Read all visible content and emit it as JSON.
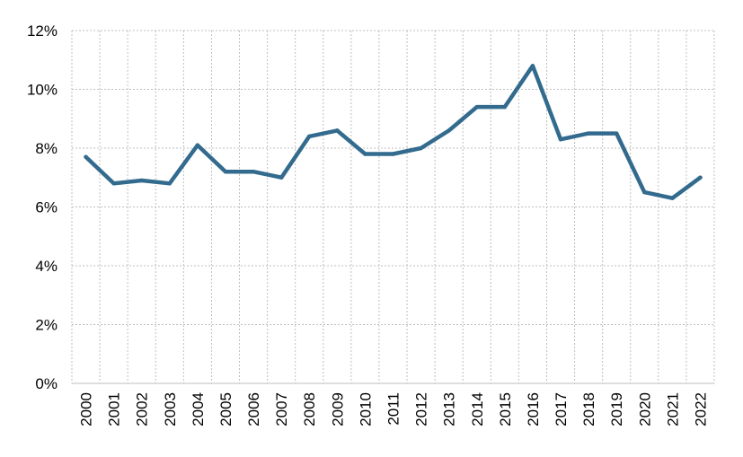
{
  "chart_data": {
    "type": "line",
    "title": "",
    "xlabel": "",
    "ylabel": "",
    "x": [
      "2000",
      "2001",
      "2002",
      "2003",
      "2004",
      "2005",
      "2006",
      "2007",
      "2008",
      "2009",
      "2010",
      "2011",
      "2012",
      "2013",
      "2014",
      "2015",
      "2016",
      "2017",
      "2018",
      "2019",
      "2020",
      "2021",
      "2022"
    ],
    "series": [
      {
        "values": [
          7.7,
          6.8,
          6.9,
          6.8,
          8.1,
          7.2,
          7.2,
          7.0,
          8.4,
          8.6,
          7.8,
          7.8,
          8.0,
          8.6,
          9.4,
          9.4,
          10.8,
          8.3,
          8.5,
          8.5,
          6.5,
          6.3,
          7.0
        ],
        "color": "#336b8e"
      }
    ],
    "ylim": [
      0,
      12
    ],
    "yticks": [
      0,
      2,
      4,
      6,
      8,
      10,
      12
    ],
    "ytick_labels": [
      "0%",
      "2%",
      "4%",
      "6%",
      "8%",
      "10%",
      "12%"
    ],
    "grid": true,
    "grid_style": "dotted",
    "x_tick_rotation": "vertical",
    "legend": "none"
  }
}
